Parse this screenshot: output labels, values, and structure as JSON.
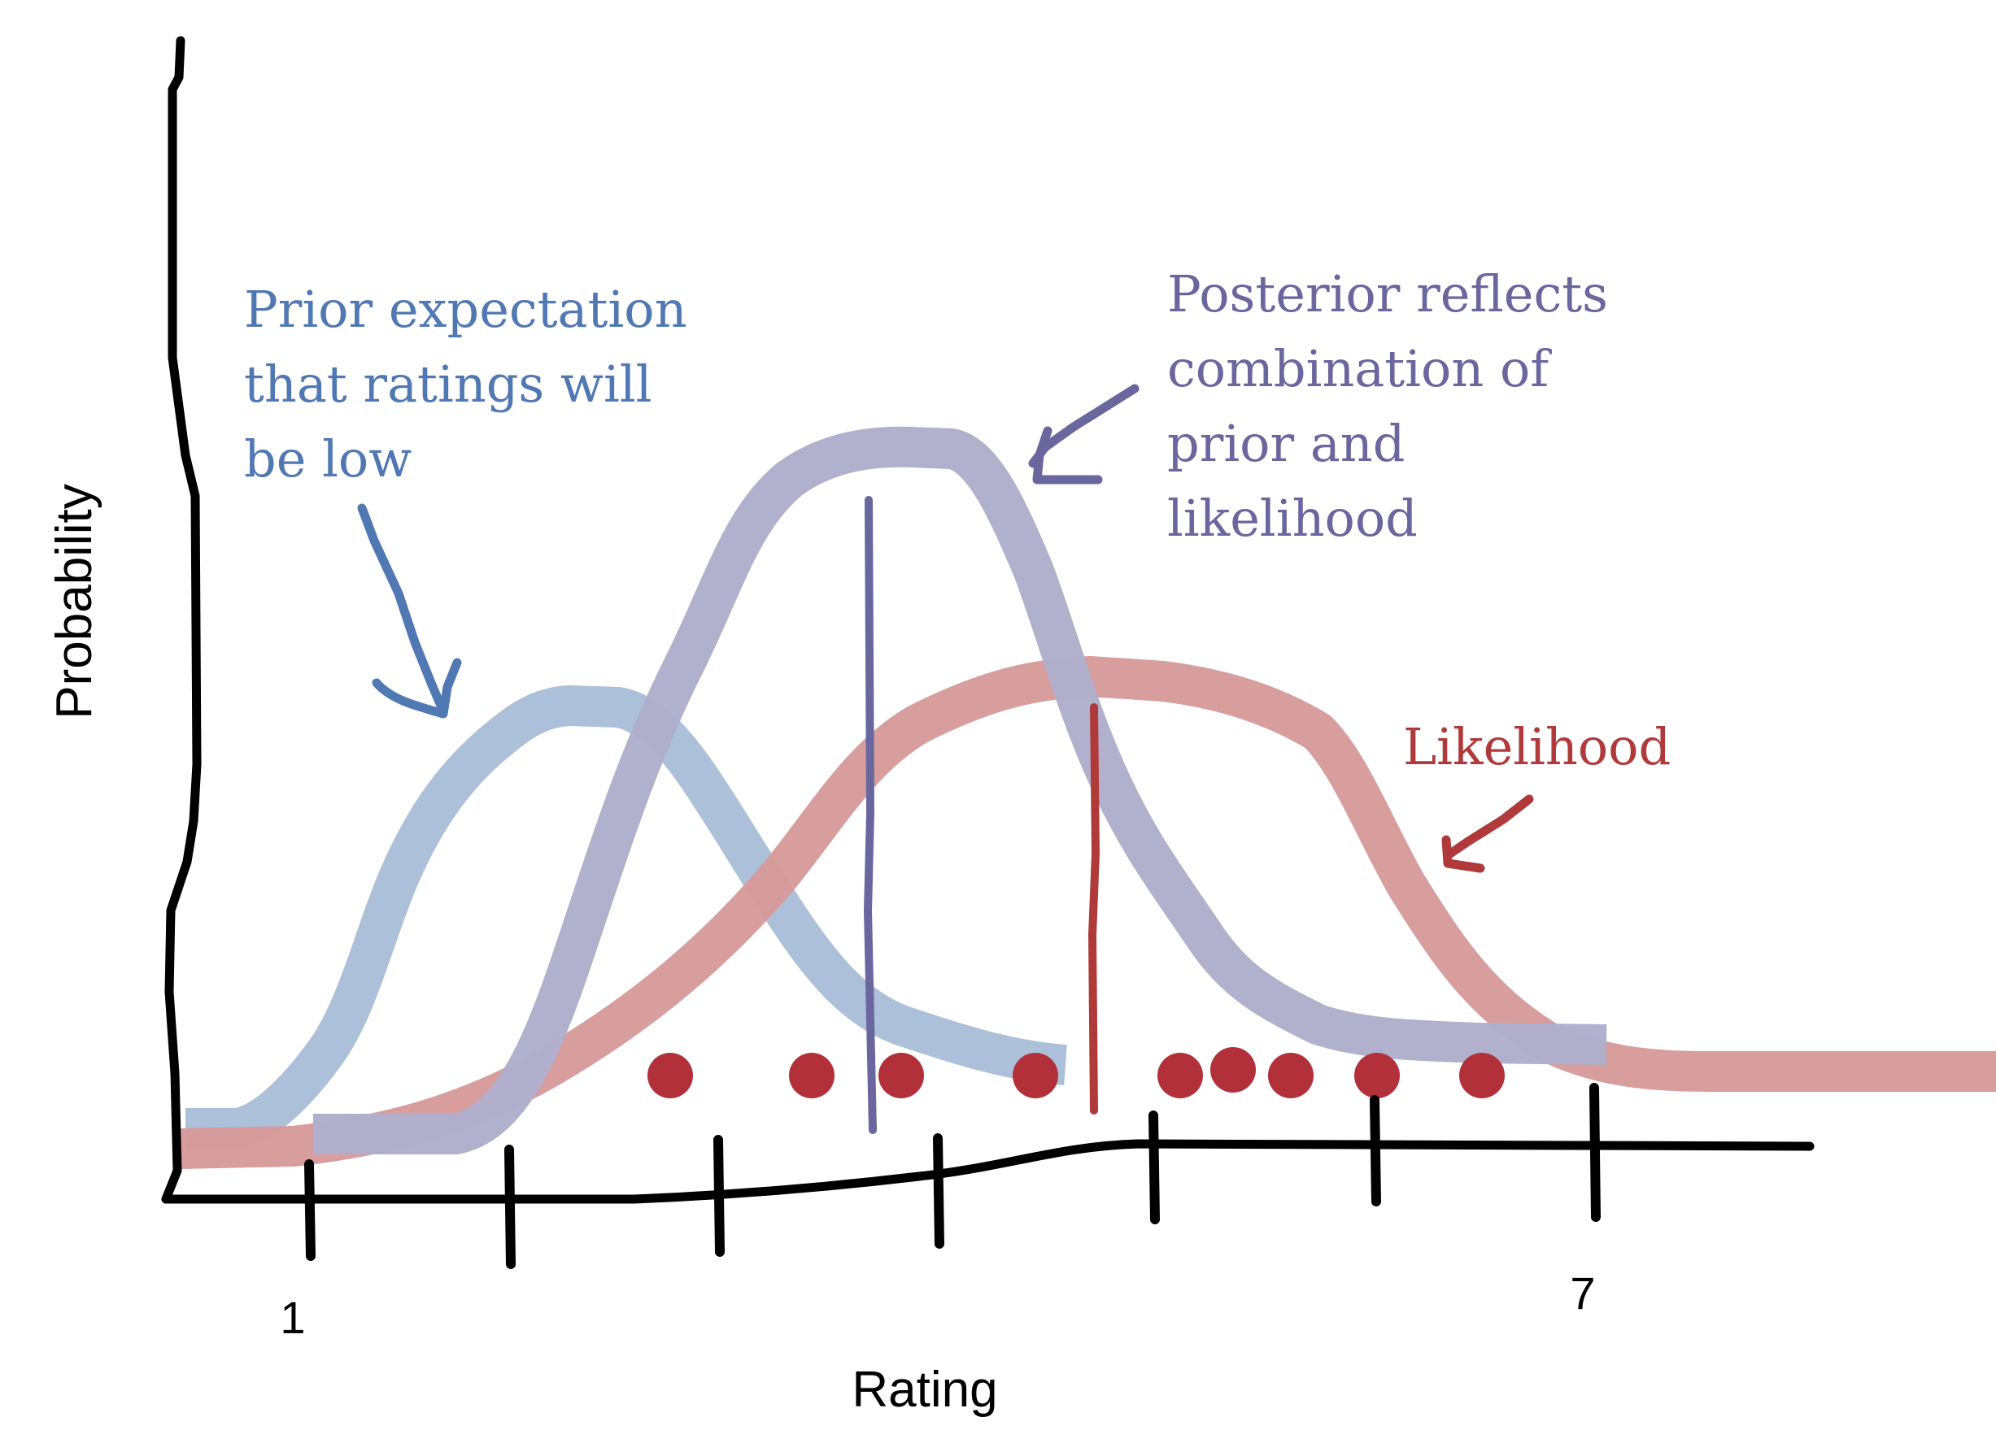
{
  "axes": {
    "x_label": "Rating",
    "y_label": "Probability",
    "x_tick_first": "1",
    "x_tick_last": "7"
  },
  "annotations": {
    "prior": [
      "Prior expectation",
      "that ratings will",
      "be low"
    ],
    "posterior": [
      "Posterior reflects",
      "combination of",
      "prior and",
      "likelihood"
    ],
    "likelihood": [
      "Likelihood"
    ]
  },
  "colors": {
    "prior": "#a9bed9",
    "prior_text": "#5079b3",
    "posterior": "#aeaecb",
    "posterior_text": "#6a679e",
    "likelihood": "#d79a9a",
    "likelihood_text": "#b03a3a",
    "data_point": "#b2303a",
    "axis": "#000000"
  }
}
